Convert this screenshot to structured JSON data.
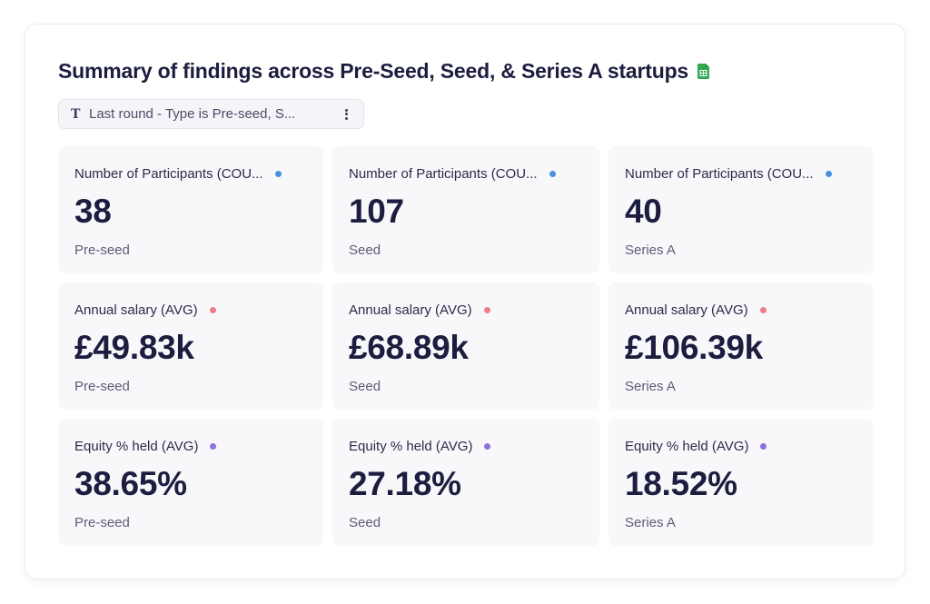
{
  "header": {
    "title": "Summary of findings across Pre-Seed, Seed, & Series A startups",
    "sheet_icon": "google-sheets-icon",
    "sheet_icon_color": "#34a853"
  },
  "filter": {
    "type_icon": "T",
    "label": "Last round - Type is Pre-seed, S...",
    "menu_icon": "kebab-menu-icon"
  },
  "colors": {
    "participants": "#4a90e2",
    "salary": "#f07b8a",
    "equity": "#8e6ee0"
  },
  "rows": [
    {
      "label": "Number of Participants (COU...",
      "cells": [
        {
          "value": "38",
          "segment": "Pre-seed"
        },
        {
          "value": "107",
          "segment": "Seed"
        },
        {
          "value": "40",
          "segment": "Series A"
        }
      ]
    },
    {
      "label": "Annual salary (AVG)",
      "cells": [
        {
          "value": "£49.83k",
          "segment": "Pre-seed"
        },
        {
          "value": "£68.89k",
          "segment": "Seed"
        },
        {
          "value": "£106.39k",
          "segment": "Series A"
        }
      ]
    },
    {
      "label": "Equity % held (AVG)",
      "cells": [
        {
          "value": "38.65%",
          "segment": "Pre-seed"
        },
        {
          "value": "27.18%",
          "segment": "Seed"
        },
        {
          "value": "18.52%",
          "segment": "Series A"
        }
      ]
    }
  ]
}
